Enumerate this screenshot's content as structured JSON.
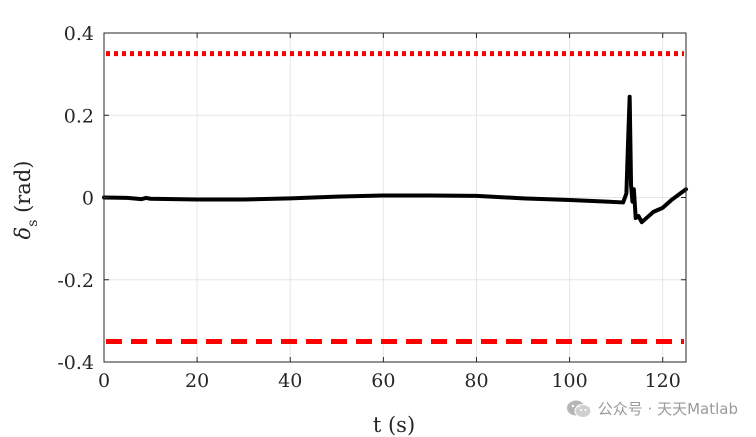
{
  "chart_data": {
    "type": "line",
    "title": "",
    "xlabel": "t (s)",
    "ylabel_main": "δ",
    "ylabel_sub": "s",
    "ylabel_unit": "(rad)",
    "xlim": [
      0,
      125
    ],
    "ylim": [
      -0.4,
      0.4
    ],
    "xticks": [
      0,
      20,
      40,
      60,
      80,
      100,
      120
    ],
    "yticks": [
      0.4,
      0.2,
      0,
      -0.2,
      -0.4
    ],
    "ytick_labels": [
      "0.4",
      "0.2",
      "0",
      "-0.2",
      "-0.4"
    ],
    "grid": true,
    "upper_limit": 0.35,
    "lower_limit": -0.35,
    "limit_color": "#ff0000",
    "series_color": "#000000",
    "series": [
      {
        "x": [
          0,
          5,
          8,
          9,
          10,
          15,
          20,
          30,
          40,
          50,
          60,
          70,
          80,
          90,
          100,
          108,
          111.5,
          112.2,
          112.6,
          112.9,
          113.2,
          113.5,
          113.8,
          114.2,
          114.8,
          115.5,
          116.5,
          118,
          120,
          122,
          125
        ],
        "y": [
          0,
          -0.001,
          -0.004,
          -0.001,
          -0.003,
          -0.004,
          -0.005,
          -0.005,
          -0.002,
          0.002,
          0.005,
          0.005,
          0.004,
          -0.002,
          -0.006,
          -0.01,
          -0.012,
          0.01,
          0.15,
          0.245,
          0.03,
          -0.01,
          0.02,
          -0.05,
          -0.045,
          -0.06,
          -0.05,
          -0.035,
          -0.025,
          -0.005,
          0.02
        ]
      }
    ]
  },
  "watermark": {
    "text": "公众号 · 天天Matlab",
    "icon": "wechat-icon"
  }
}
